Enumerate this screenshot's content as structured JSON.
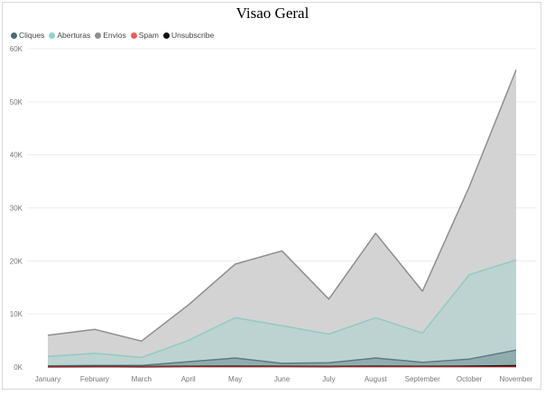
{
  "chart_data": {
    "type": "area",
    "title": "Visao Geral",
    "xlabel": "",
    "ylabel": "",
    "categories": [
      "January",
      "February",
      "March",
      "April",
      "May",
      "June",
      "July",
      "August",
      "September",
      "October",
      "November"
    ],
    "ylim": [
      0,
      60000
    ],
    "yticks": [
      0,
      10000,
      20000,
      30000,
      40000,
      50000,
      60000
    ],
    "ytick_labels": [
      "0K",
      "10K",
      "20K",
      "30K",
      "40K",
      "50K",
      "60K"
    ],
    "grid": true,
    "legend_position": "top-left",
    "series": [
      {
        "name": "Cliques",
        "color": "#4a6b74",
        "values": [
          200,
          300,
          300,
          1000,
          1700,
          700,
          800,
          1700,
          900,
          1500,
          3200
        ]
      },
      {
        "name": "Aberturas",
        "color": "#8fd3cd",
        "values": [
          2000,
          2600,
          1800,
          5000,
          9300,
          7800,
          6200,
          9300,
          6400,
          17400,
          20200
        ]
      },
      {
        "name": "Envios",
        "color": "#8e8e8e",
        "values": [
          6000,
          7100,
          4900,
          11700,
          19400,
          21900,
          12800,
          25200,
          14300,
          34000,
          56000
        ]
      },
      {
        "name": "Spam",
        "color": "#f05a5a",
        "values": [
          0,
          0,
          0,
          0,
          0,
          0,
          0,
          0,
          0,
          0,
          0
        ]
      },
      {
        "name": "Unsubscribe",
        "color": "#111111",
        "values": [
          50,
          60,
          50,
          80,
          100,
          90,
          70,
          100,
          80,
          120,
          200
        ]
      }
    ]
  }
}
